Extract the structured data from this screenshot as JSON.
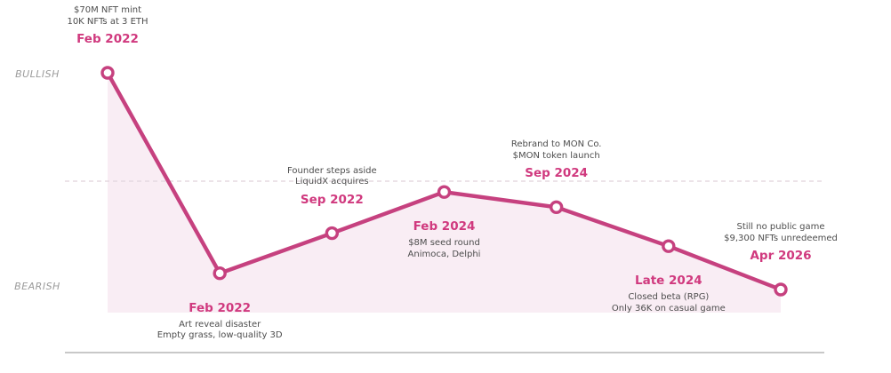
{
  "chart_data": {
    "type": "line",
    "title": "",
    "y_axis": {
      "top_label": "BULLISH",
      "bottom_label": "BEARISH",
      "neutral_dashed_midline": true,
      "ylim": [
        -1.2,
        1.2
      ]
    },
    "x_spacing": "even",
    "points": [
      {
        "date": "Feb 2022",
        "sentiment": 1.0,
        "annotation": "above",
        "notes": [
          "$70M NFT mint",
          "10K NFTs at 3 ETH"
        ]
      },
      {
        "date": "Feb 2022",
        "sentiment": -0.85,
        "annotation": "below",
        "notes": [
          "Art reveal disaster",
          "Empty grass, low-quality 3D"
        ]
      },
      {
        "date": "Sep 2022",
        "sentiment": -0.48,
        "annotation": "above",
        "notes": [
          "Founder steps aside",
          "LiquidX acquires"
        ]
      },
      {
        "date": "Feb 2024",
        "sentiment": -0.1,
        "annotation": "below",
        "notes": [
          "$8M seed round",
          "Animoca, Delphi"
        ]
      },
      {
        "date": "Sep 2024",
        "sentiment": -0.24,
        "annotation": "above",
        "notes": [
          "Rebrand to MON Co.",
          "$MON token launch"
        ]
      },
      {
        "date": "Late 2024",
        "sentiment": -0.6,
        "annotation": "below",
        "notes": [
          "Closed beta (RPG)",
          "Only 36K on casual game"
        ]
      },
      {
        "date": "Apr 2026",
        "sentiment": -1.0,
        "annotation": "above",
        "notes": [
          "Still no public game",
          "$9,300 NFTs unredeemed"
        ]
      }
    ],
    "colors": {
      "line": "#c6417f",
      "marker_fill": "#ffffff",
      "area_fill": "#f9edf4",
      "date_text": "#d0397e",
      "note_text": "#4d4d4d",
      "axis_label_text": "#9b9b9b",
      "neutral_line": "#e6dae1",
      "baseline": "#a6a6a6"
    }
  }
}
